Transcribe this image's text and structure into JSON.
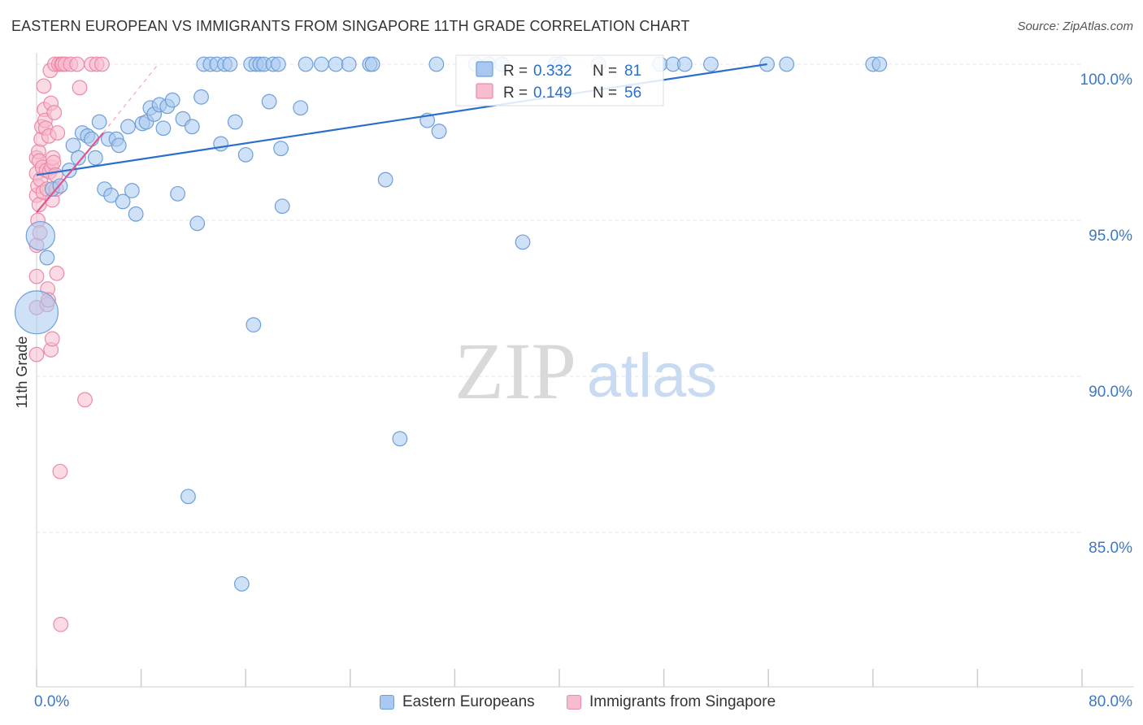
{
  "header": {
    "title": "EASTERN EUROPEAN VS IMMIGRANTS FROM SINGAPORE 11TH GRADE CORRELATION CHART",
    "source": "Source: ZipAtlas.com"
  },
  "watermark": {
    "zip": "ZIP",
    "atlas": "atlas"
  },
  "colors": {
    "blue_fill": "#a8c8ef",
    "blue_stroke": "#6f9fda",
    "blue_line": "#2a6fcc",
    "pink_fill": "#f7bccd",
    "pink_stroke": "#ec8aa8",
    "pink_line": "#e2558a",
    "axis_text": "#3c78c8",
    "grid": "#e4e4e4"
  },
  "stats_legend": [
    {
      "r_label": "R =",
      "r_value": "0.332",
      "n_label": "N =",
      "n_value": "81"
    },
    {
      "r_label": "R =",
      "r_value": "0.149",
      "n_label": "N =",
      "n_value": "56"
    }
  ],
  "chart_data": {
    "type": "scatter",
    "title": "EASTERN EUROPEAN VS IMMIGRANTS FROM SINGAPORE 11TH GRADE CORRELATION CHART",
    "xlabel": "",
    "ylabel": "11th Grade",
    "xlim": [
      0,
      80
    ],
    "ylim": [
      80.5,
      100.8
    ],
    "x_tick_labels": [
      "0.0%",
      "80.0%"
    ],
    "y_ticks": [
      100,
      95,
      90,
      85
    ],
    "y_tick_labels": [
      "100.0%",
      "95.0%",
      "90.0%",
      "85.0%"
    ],
    "grid": true,
    "legend_position": "bottom",
    "series": [
      {
        "name": "Eastern Europeans",
        "r": 0.332,
        "n": 81,
        "trend": {
          "x": [
            0,
            55.9
          ],
          "y": [
            96.45,
            100.0
          ]
        },
        "points": [
          {
            "x": 0.0,
            "y": 92.05,
            "s": 3
          },
          {
            "x": 0.3,
            "y": 94.5,
            "s": 2
          },
          {
            "x": 0.8,
            "y": 93.8
          },
          {
            "x": 1.2,
            "y": 96.0
          },
          {
            "x": 1.8,
            "y": 96.1
          },
          {
            "x": 2.5,
            "y": 96.6
          },
          {
            "x": 2.8,
            "y": 97.4
          },
          {
            "x": 3.2,
            "y": 97.0
          },
          {
            "x": 3.5,
            "y": 97.8
          },
          {
            "x": 3.9,
            "y": 97.7
          },
          {
            "x": 4.2,
            "y": 97.6
          },
          {
            "x": 4.5,
            "y": 97.0
          },
          {
            "x": 4.8,
            "y": 98.15
          },
          {
            "x": 5.2,
            "y": 96.0
          },
          {
            "x": 5.5,
            "y": 97.6
          },
          {
            "x": 5.7,
            "y": 95.8
          },
          {
            "x": 6.1,
            "y": 97.6
          },
          {
            "x": 6.3,
            "y": 97.4
          },
          {
            "x": 6.6,
            "y": 95.6
          },
          {
            "x": 7.0,
            "y": 98.0
          },
          {
            "x": 7.3,
            "y": 95.95
          },
          {
            "x": 7.6,
            "y": 95.2
          },
          {
            "x": 8.1,
            "y": 98.1
          },
          {
            "x": 8.4,
            "y": 98.15
          },
          {
            "x": 8.7,
            "y": 98.6
          },
          {
            "x": 9.0,
            "y": 98.4
          },
          {
            "x": 9.4,
            "y": 98.7
          },
          {
            "x": 9.7,
            "y": 97.95
          },
          {
            "x": 10.0,
            "y": 98.65
          },
          {
            "x": 10.4,
            "y": 98.85
          },
          {
            "x": 10.8,
            "y": 95.85
          },
          {
            "x": 11.2,
            "y": 98.25
          },
          {
            "x": 11.9,
            "y": 98.0
          },
          {
            "x": 12.3,
            "y": 94.9
          },
          {
            "x": 12.6,
            "y": 98.95
          },
          {
            "x": 12.8,
            "y": 100.0
          },
          {
            "x": 13.3,
            "y": 100.0
          },
          {
            "x": 11.6,
            "y": 86.15
          },
          {
            "x": 13.8,
            "y": 100.0
          },
          {
            "x": 14.1,
            "y": 97.45
          },
          {
            "x": 14.4,
            "y": 100.0
          },
          {
            "x": 14.8,
            "y": 100.0
          },
          {
            "x": 15.2,
            "y": 98.15
          },
          {
            "x": 15.7,
            "y": 83.35
          },
          {
            "x": 16.0,
            "y": 97.1
          },
          {
            "x": 16.4,
            "y": 100.0
          },
          {
            "x": 16.6,
            "y": 91.65
          },
          {
            "x": 16.8,
            "y": 100.0
          },
          {
            "x": 17.1,
            "y": 100.0
          },
          {
            "x": 17.4,
            "y": 100.0
          },
          {
            "x": 17.8,
            "y": 98.8
          },
          {
            "x": 18.1,
            "y": 100.0
          },
          {
            "x": 18.5,
            "y": 100.0
          },
          {
            "x": 18.7,
            "y": 97.3
          },
          {
            "x": 18.8,
            "y": 95.45
          },
          {
            "x": 20.2,
            "y": 98.6
          },
          {
            "x": 20.6,
            "y": 100.0
          },
          {
            "x": 21.8,
            "y": 100.0
          },
          {
            "x": 22.9,
            "y": 100.0
          },
          {
            "x": 23.9,
            "y": 100.0
          },
          {
            "x": 25.5,
            "y": 100.0
          },
          {
            "x": 25.7,
            "y": 100.0
          },
          {
            "x": 26.7,
            "y": 96.3
          },
          {
            "x": 27.8,
            "y": 88.0
          },
          {
            "x": 29.9,
            "y": 98.2
          },
          {
            "x": 30.8,
            "y": 97.85
          },
          {
            "x": 30.6,
            "y": 100.0
          },
          {
            "x": 33.6,
            "y": 100.0
          },
          {
            "x": 34.6,
            "y": 100.0
          },
          {
            "x": 35.6,
            "y": 100.0
          },
          {
            "x": 37.2,
            "y": 94.3
          },
          {
            "x": 39.7,
            "y": 100.0
          },
          {
            "x": 40.1,
            "y": 100.0
          },
          {
            "x": 43.0,
            "y": 100.0
          },
          {
            "x": 47.7,
            "y": 100.0
          },
          {
            "x": 48.7,
            "y": 100.0
          },
          {
            "x": 49.6,
            "y": 100.0
          },
          {
            "x": 51.6,
            "y": 100.0
          },
          {
            "x": 55.9,
            "y": 100.0
          },
          {
            "x": 57.4,
            "y": 100.0
          },
          {
            "x": 64.0,
            "y": 100.0
          },
          {
            "x": 64.5,
            "y": 100.0
          }
        ]
      },
      {
        "name": "Immigrants from Singapore",
        "r": 0.149,
        "n": 56,
        "trend": {
          "x": [
            0,
            5.1
          ],
          "y": [
            95.25,
            97.8
          ]
        },
        "trend_extension": {
          "x": [
            5.1,
            9.3
          ],
          "y": [
            97.8,
            100.0
          ]
        },
        "points": [
          {
            "x": 0.0,
            "y": 97.0
          },
          {
            "x": 0.0,
            "y": 96.5
          },
          {
            "x": 0.0,
            "y": 95.8
          },
          {
            "x": 0.0,
            "y": 94.2
          },
          {
            "x": 0.0,
            "y": 93.2
          },
          {
            "x": 0.0,
            "y": 92.2
          },
          {
            "x": 0.0,
            "y": 90.7
          },
          {
            "x": 0.1,
            "y": 95.0
          },
          {
            "x": 0.1,
            "y": 96.1
          },
          {
            "x": 0.15,
            "y": 97.2
          },
          {
            "x": 0.2,
            "y": 96.9
          },
          {
            "x": 0.2,
            "y": 95.5
          },
          {
            "x": 0.25,
            "y": 94.6
          },
          {
            "x": 0.3,
            "y": 96.3
          },
          {
            "x": 0.35,
            "y": 97.6
          },
          {
            "x": 0.4,
            "y": 98.0
          },
          {
            "x": 0.45,
            "y": 96.7
          },
          {
            "x": 0.5,
            "y": 95.9
          },
          {
            "x": 0.55,
            "y": 99.3
          },
          {
            "x": 0.6,
            "y": 98.55
          },
          {
            "x": 0.65,
            "y": 98.2
          },
          {
            "x": 0.7,
            "y": 97.95
          },
          {
            "x": 0.75,
            "y": 96.6
          },
          {
            "x": 0.8,
            "y": 96.0
          },
          {
            "x": 0.8,
            "y": 92.3
          },
          {
            "x": 0.85,
            "y": 92.8
          },
          {
            "x": 0.9,
            "y": 92.45
          },
          {
            "x": 0.95,
            "y": 97.7
          },
          {
            "x": 1.0,
            "y": 96.55
          },
          {
            "x": 1.05,
            "y": 99.8
          },
          {
            "x": 1.1,
            "y": 98.75
          },
          {
            "x": 1.1,
            "y": 90.85
          },
          {
            "x": 1.15,
            "y": 96.7
          },
          {
            "x": 1.2,
            "y": 95.65
          },
          {
            "x": 1.2,
            "y": 91.2
          },
          {
            "x": 1.25,
            "y": 97.0
          },
          {
            "x": 1.3,
            "y": 96.85
          },
          {
            "x": 1.35,
            "y": 98.45
          },
          {
            "x": 1.4,
            "y": 100.0
          },
          {
            "x": 1.45,
            "y": 96.45
          },
          {
            "x": 1.5,
            "y": 96.0
          },
          {
            "x": 1.55,
            "y": 93.3
          },
          {
            "x": 1.6,
            "y": 97.8
          },
          {
            "x": 1.7,
            "y": 100.0
          },
          {
            "x": 1.8,
            "y": 86.95
          },
          {
            "x": 1.9,
            "y": 100.0
          },
          {
            "x": 2.0,
            "y": 100.0
          },
          {
            "x": 2.2,
            "y": 100.0
          },
          {
            "x": 1.85,
            "y": 82.05
          },
          {
            "x": 2.6,
            "y": 100.0
          },
          {
            "x": 3.1,
            "y": 100.0
          },
          {
            "x": 3.3,
            "y": 99.25
          },
          {
            "x": 3.7,
            "y": 89.25
          },
          {
            "x": 4.2,
            "y": 100.0
          },
          {
            "x": 4.6,
            "y": 100.0
          },
          {
            "x": 5.0,
            "y": 100.0
          }
        ]
      }
    ]
  },
  "bottom_legend": [
    {
      "label": "Eastern Europeans"
    },
    {
      "label": "Immigrants from Singapore"
    }
  ]
}
